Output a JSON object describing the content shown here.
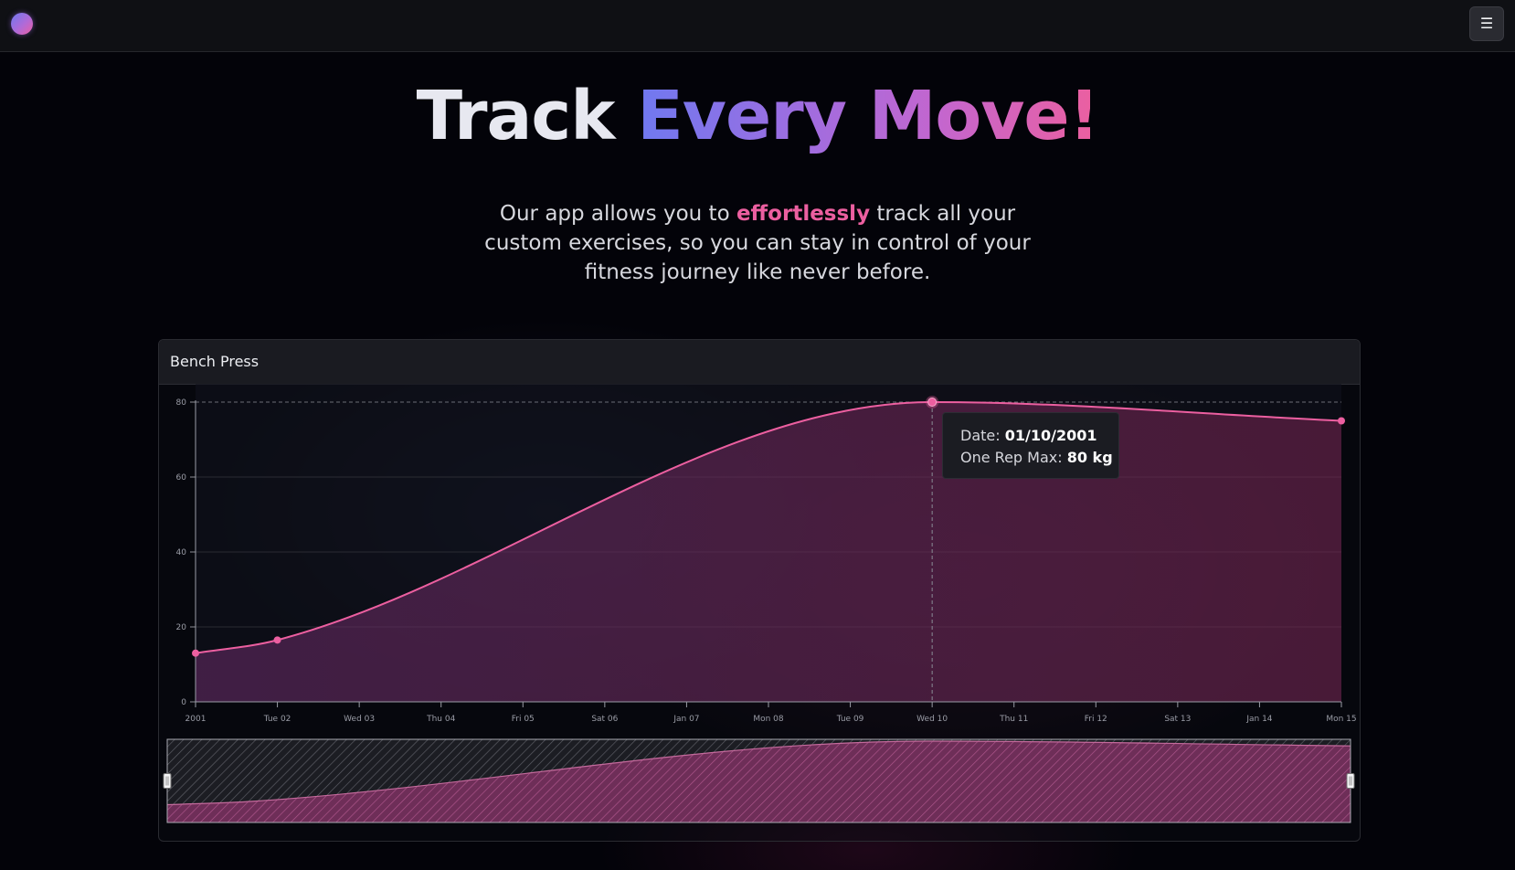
{
  "hero": {
    "title_plain": "Track",
    "title_gradient": "Every Move!",
    "subtitle_before": "Our app allows you to",
    "subtitle_highlight": "effortlessly",
    "subtitle_after": "track all your custom exercises, so you can stay in control of your fitness journey like never before."
  },
  "card": {
    "title": "Bench Press"
  },
  "tooltip": {
    "date_label": "Date:",
    "date_value": "01/10/2001",
    "orm_label": "One Rep Max:",
    "orm_value": "80 kg"
  },
  "colors": {
    "accent": "#ec5fa0",
    "gradient_start": "#6f79f0",
    "gradient_end": "#ec5f9f",
    "grid": "#2a2b33"
  },
  "icons": {
    "logo": "logo-circle-icon",
    "menu": "hamburger-menu-icon"
  },
  "chart_data": {
    "type": "area",
    "title": "Bench Press",
    "xlabel": "",
    "ylabel": "",
    "ylim": [
      0,
      80
    ],
    "yticks": [
      0,
      20,
      40,
      60,
      80
    ],
    "x_ticks": [
      "2001",
      "Tue 02",
      "Wed 03",
      "Thu 04",
      "Fri 05",
      "Sat 06",
      "Jan 07",
      "Mon 08",
      "Tue 09",
      "Wed 10",
      "Thu 11",
      "Fri 12",
      "Sat 13",
      "Jan 14",
      "Mon 15"
    ],
    "x_range": [
      "2001-01-01",
      "2001-01-15"
    ],
    "grid": true,
    "series": [
      {
        "points": [
          {
            "x": "2001-01-01",
            "y": 13
          },
          {
            "x": "2001-01-02",
            "y": 16.5
          },
          {
            "x": "2001-01-10",
            "y": 80
          },
          {
            "x": "2001-01-15",
            "y": 75
          }
        ]
      }
    ],
    "highlighted_point": {
      "x": "2001-01-10",
      "y": 80
    },
    "navigator": true
  }
}
